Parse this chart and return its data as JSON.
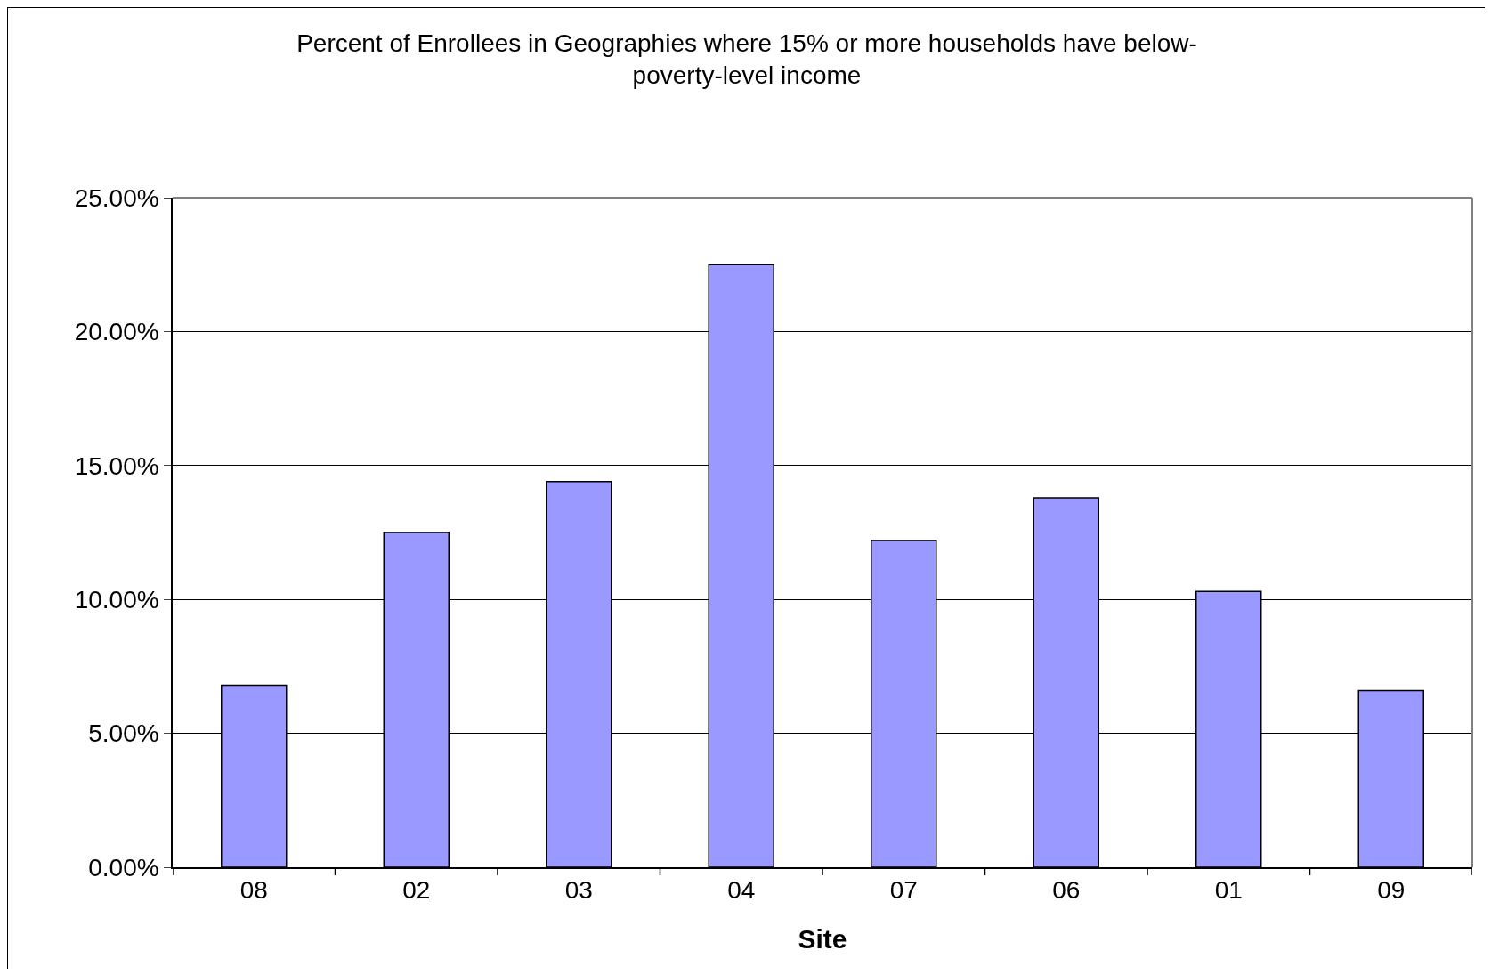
{
  "chart_data": {
    "type": "bar",
    "title": "Percent of Enrollees in Geographies where 15% or more households have below-poverty-level income",
    "xlabel": "Site",
    "categories": [
      "08",
      "02",
      "03",
      "04",
      "07",
      "06",
      "01",
      "09"
    ],
    "values": [
      6.8,
      12.5,
      14.4,
      22.5,
      12.2,
      13.8,
      10.3,
      6.6
    ],
    "color": "#9999ff",
    "ylim": [
      0,
      25
    ],
    "yticks": [
      {
        "value": 0,
        "label": "0.00%"
      },
      {
        "value": 5,
        "label": "5.00%"
      },
      {
        "value": 10,
        "label": "10.00%"
      },
      {
        "value": 15,
        "label": "15.00%"
      },
      {
        "value": 20,
        "label": "20.00%"
      },
      {
        "value": 25,
        "label": "25.00%"
      }
    ],
    "grid": "y"
  }
}
